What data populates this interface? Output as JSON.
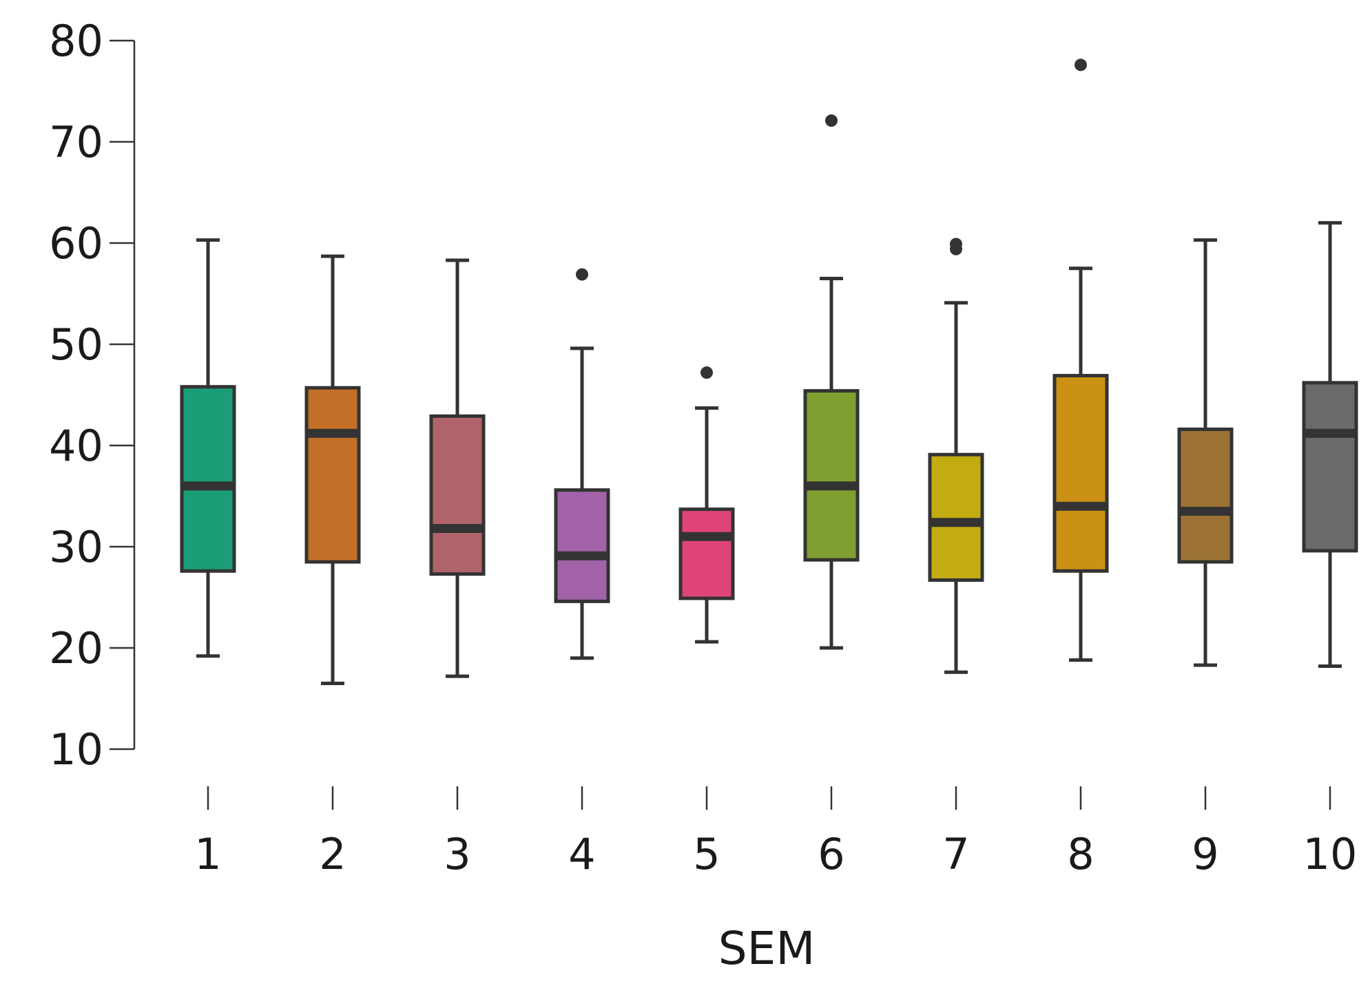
{
  "chart_data": {
    "type": "box",
    "title": "",
    "xlabel": "SEM",
    "ylabel": "",
    "ylim": [
      10,
      80
    ],
    "yticks": [
      10,
      20,
      30,
      40,
      50,
      60,
      70,
      80
    ],
    "grid": false,
    "legend": "none",
    "categories": [
      "1",
      "2",
      "3",
      "4",
      "5",
      "6",
      "7",
      "8",
      "9",
      "10"
    ],
    "boxes": [
      {
        "category": "1",
        "color": "#1b9e77",
        "whisker_low": 19.2,
        "q1": 27.6,
        "median": 36.0,
        "q3": 45.8,
        "whisker_high": 60.3,
        "outliers": []
      },
      {
        "category": "2",
        "color": "#c36f27",
        "whisker_low": 16.5,
        "q1": 28.5,
        "median": 41.2,
        "q3": 45.7,
        "whisker_high": 58.7,
        "outliers": []
      },
      {
        "category": "3",
        "color": "#b0636a",
        "whisker_low": 17.2,
        "q1": 27.3,
        "median": 31.8,
        "q3": 42.9,
        "whisker_high": 58.3,
        "outliers": []
      },
      {
        "category": "4",
        "color": "#a262a8",
        "whisker_low": 19.0,
        "q1": 24.6,
        "median": 29.1,
        "q3": 35.6,
        "whisker_high": 49.6,
        "outliers": [
          56.9
        ]
      },
      {
        "category": "5",
        "color": "#de4479",
        "whisker_low": 20.6,
        "q1": 24.9,
        "median": 31.0,
        "q3": 33.7,
        "whisker_high": 43.7,
        "outliers": [
          47.2
        ]
      },
      {
        "category": "6",
        "color": "#7fa030",
        "whisker_low": 20.0,
        "q1": 28.7,
        "median": 36.0,
        "q3": 45.4,
        "whisker_high": 56.5,
        "outliers": [
          72.1
        ]
      },
      {
        "category": "7",
        "color": "#c3ab12",
        "whisker_low": 17.6,
        "q1": 26.7,
        "median": 32.4,
        "q3": 39.1,
        "whisker_high": 54.1,
        "outliers": [
          59.4,
          59.9
        ]
      },
      {
        "category": "8",
        "color": "#cb9114",
        "whisker_low": 18.8,
        "q1": 27.6,
        "median": 34.0,
        "q3": 46.9,
        "whisker_high": 57.5,
        "outliers": [
          77.6
        ]
      },
      {
        "category": "9",
        "color": "#9c7233",
        "whisker_low": 18.3,
        "q1": 28.5,
        "median": 33.5,
        "q3": 41.6,
        "whisker_high": 60.3,
        "outliers": []
      },
      {
        "category": "10",
        "color": "#6a6a6a",
        "whisker_low": 18.2,
        "q1": 29.6,
        "median": 41.2,
        "q3": 46.2,
        "whisker_high": 62.0,
        "outliers": []
      }
    ]
  }
}
